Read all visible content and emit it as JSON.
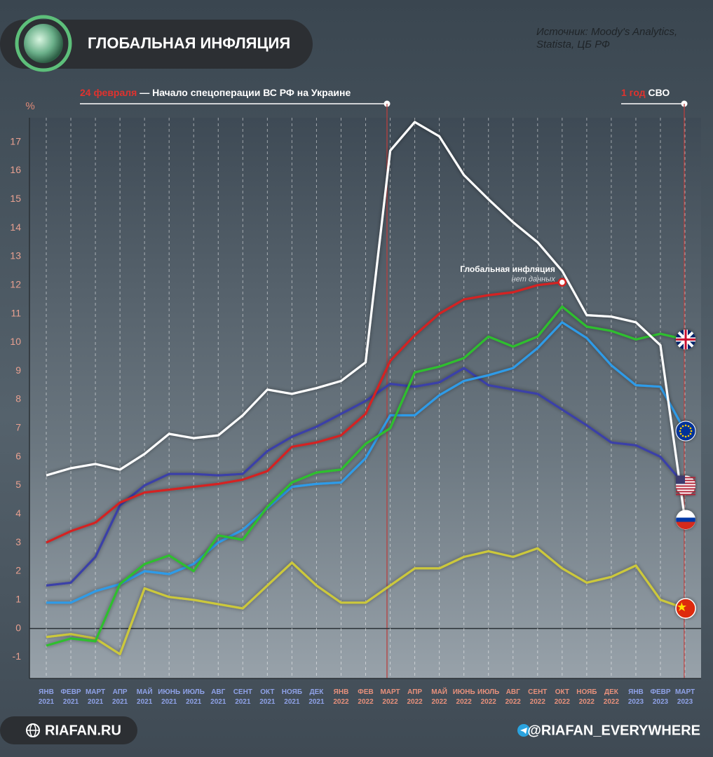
{
  "chart_data": {
    "type": "line",
    "title": "ГЛОБАЛЬНАЯ ИНФЛЯЦИЯ",
    "source": [
      "Источник: Moody's Analytics,",
      "Statista, ЦБ РФ"
    ],
    "y_label": "%",
    "events": [
      {
        "highlight": "24 февраля",
        "text": " — Начало спецоперации ВС РФ на Украине"
      },
      {
        "highlight": "1 год",
        "text": " СВО"
      }
    ],
    "annotation": {
      "title": "Глобальная инфляция",
      "note": "нет данных"
    },
    "footer": {
      "site": "RIAFAN.RU",
      "channel": "@RIAFAN_EVERYWHERE"
    },
    "categories": [
      "ЯНВ 2021",
      "ФЕВР 2021",
      "МАРТ 2021",
      "АПР 2021",
      "МАЙ 2021",
      "ИЮНЬ 2021",
      "ИЮЛЬ 2021",
      "АВГ 2021",
      "СЕНТ 2021",
      "ОКТ 2021",
      "НОЯБ 2021",
      "ДЕК 2021",
      "ЯНВ 2022",
      "ФЕВ 2022",
      "МАРТ 2022",
      "АПР 2022",
      "МАЙ 2022",
      "ИЮНЬ 2022",
      "ИЮЛЬ 2022",
      "АВГ 2022",
      "СЕНТ 2022",
      "ОКТ 2022",
      "НОЯБ 2022",
      "ДЕК 2022",
      "ЯНВ 2023",
      "ФЕВР 2023",
      "МАРТ 2023"
    ],
    "ylim": [
      -1.75,
      17.85
    ],
    "yticks": [
      -1,
      0,
      1,
      2,
      3,
      4,
      5,
      6,
      7,
      8,
      9,
      10,
      11,
      12,
      13,
      14,
      15,
      16,
      17
    ],
    "series": [
      {
        "color": "#ccc83a",
        "values": [
          -0.3,
          -0.2,
          -0.35,
          -0.9,
          1.4,
          1.1,
          1.0,
          0.85,
          0.7,
          1.5,
          2.3,
          1.5,
          0.9,
          0.9,
          1.5,
          2.1,
          2.1,
          2.5,
          2.7,
          2.5,
          2.8,
          2.1,
          1.6,
          1.8,
          2.2,
          1.0,
          0.7
        ]
      },
      {
        "color": "#3b3fa8",
        "values": [
          1.5,
          1.6,
          2.5,
          4.3,
          5.0,
          5.4,
          5.4,
          5.35,
          5.4,
          6.2,
          6.7,
          7.05,
          7.5,
          7.95,
          8.55,
          8.45,
          8.6,
          9.1,
          8.5,
          8.35,
          8.2,
          7.65,
          7.1,
          6.5,
          6.4,
          6.0,
          5.0
        ]
      },
      {
        "color": "#2f9be8",
        "values": [
          0.9,
          0.9,
          1.3,
          1.55,
          2.0,
          1.9,
          2.25,
          3.0,
          3.45,
          4.2,
          4.95,
          5.05,
          5.1,
          5.95,
          7.45,
          7.45,
          8.15,
          8.65,
          8.85,
          9.1,
          9.8,
          10.7,
          10.15,
          9.2,
          8.5,
          8.45,
          6.9
        ]
      },
      {
        "color": "#2fbf2f",
        "values": [
          -0.6,
          -0.35,
          -0.45,
          1.55,
          2.25,
          2.55,
          2.0,
          3.25,
          3.1,
          4.25,
          5.1,
          5.45,
          5.55,
          6.45,
          7.0,
          8.95,
          9.15,
          9.45,
          10.2,
          9.85,
          10.2,
          11.25,
          10.55,
          10.4,
          10.1,
          10.3,
          10.1
        ]
      },
      {
        "color": "#d42323",
        "values": [
          3.0,
          3.4,
          3.7,
          4.4,
          4.75,
          4.85,
          4.95,
          5.05,
          5.2,
          5.5,
          6.35,
          6.5,
          6.75,
          7.5,
          9.35,
          10.25,
          11.0,
          11.5,
          11.65,
          11.75,
          12.0,
          12.1,
          null,
          null,
          null,
          null,
          null
        ]
      },
      {
        "color": "#ffffff",
        "values": [
          5.35,
          5.6,
          5.75,
          5.55,
          6.1,
          6.8,
          6.65,
          6.75,
          7.45,
          8.35,
          8.2,
          8.4,
          8.65,
          9.3,
          16.7,
          17.7,
          17.2,
          15.85,
          15.0,
          14.2,
          13.5,
          12.5,
          10.95,
          10.9,
          10.7,
          9.9,
          3.8
        ]
      }
    ]
  }
}
